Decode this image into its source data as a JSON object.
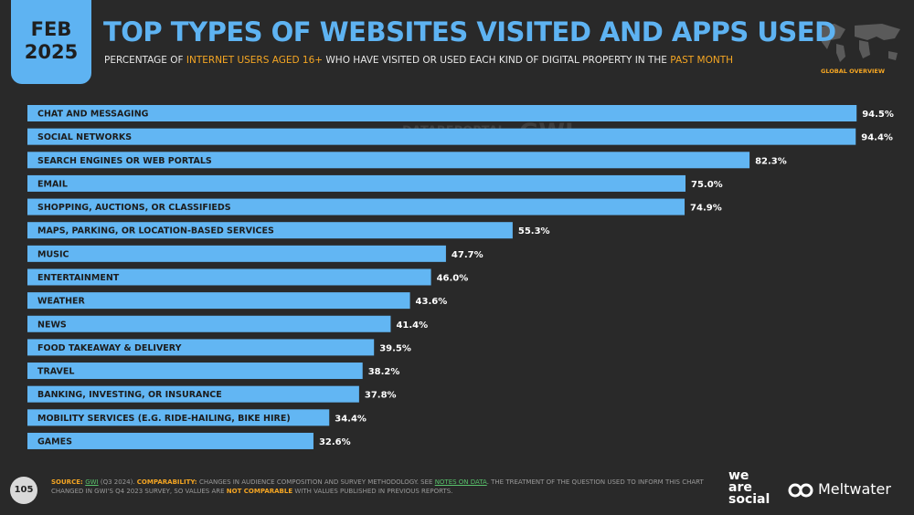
{
  "header": {
    "date": [
      "FEB",
      "2025"
    ],
    "region": "GLOBAL OVERVIEW"
  },
  "chart_data": {
    "type": "bar",
    "orientation": "horizontal",
    "title": "TOP TYPES OF WEBSITES VISITED AND APPS USED",
    "subtitle": [
      {
        "text": "PERCENTAGE OF ",
        "highlight": false
      },
      {
        "text": "INTERNET USERS AGED 16+",
        "highlight": true
      },
      {
        "text": " WHO HAVE VISITED OR USED EACH KIND OF DIGITAL PROPERTY IN THE ",
        "highlight": false
      },
      {
        "text": "PAST MONTH",
        "highlight": true
      }
    ],
    "categories": [
      "CHAT AND MESSAGING",
      "SOCIAL NETWORKS",
      "SEARCH ENGINES OR WEB PORTALS",
      "EMAIL",
      "SHOPPING, AUCTIONS, OR CLASSIFIEDS",
      "MAPS, PARKING, OR LOCATION-BASED SERVICES",
      "MUSIC",
      "ENTERTAINMENT",
      "WEATHER",
      "NEWS",
      "FOOD TAKEAWAY & DELIVERY",
      "TRAVEL",
      "BANKING, INVESTING, OR INSURANCE",
      "MOBILITY SERVICES (E.G. RIDE-HAILING, BIKE HIRE)",
      "GAMES"
    ],
    "values": [
      94.5,
      94.4,
      82.3,
      75.0,
      74.9,
      55.3,
      47.7,
      46.0,
      43.6,
      41.4,
      39.5,
      38.2,
      37.8,
      34.4,
      32.6
    ],
    "value_labels": [
      "94.5%",
      "94.4%",
      "82.3%",
      "75.0%",
      "74.9%",
      "55.3%",
      "47.7%",
      "46.0%",
      "43.6%",
      "41.4%",
      "39.5%",
      "38.2%",
      "37.8%",
      "34.4%",
      "32.6%"
    ],
    "color": "#62b6f3"
  },
  "watermark": [
    "DATAREPORTAL",
    "GWI."
  ],
  "footer": {
    "page": "105",
    "source": [
      {
        "text": "SOURCE: ",
        "style": "orange"
      },
      {
        "text": "GWI",
        "style": "link"
      },
      {
        "text": " (Q3 2024). ",
        "style": "plain"
      },
      {
        "text": "COMPARABILITY: ",
        "style": "orange"
      },
      {
        "text": "CHANGES IN AUDIENCE COMPOSITION AND SURVEY METHODOLOGY. SEE ",
        "style": "plain"
      },
      {
        "text": "NOTES ON DATA",
        "style": "link"
      },
      {
        "text": ". THE TREATMENT OF THE QUESTION USED TO INFORM THIS CHART CHANGED IN GWI'S Q4 2023 SURVEY, SO VALUES ARE ",
        "style": "plain"
      },
      {
        "text": "NOT COMPARABLE",
        "style": "orange"
      },
      {
        "text": " WITH VALUES PUBLISHED IN PREVIOUS REPORTS.",
        "style": "plain"
      }
    ],
    "brands": [
      "we",
      "are",
      "social",
      "Meltwater"
    ]
  }
}
